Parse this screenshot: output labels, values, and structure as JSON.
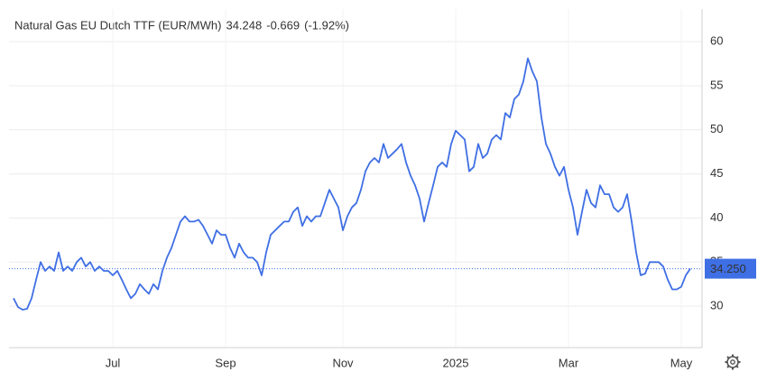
{
  "chart_data": {
    "type": "line",
    "title": "Natural Gas EU Dutch TTF (EUR/MWh)",
    "last_value": 34.248,
    "change": -0.669,
    "change_percent": "(-1.92%)",
    "color": "#3f6fe4",
    "up_color": "#3f6fe4",
    "down_color": "#e05a5a",
    "grid": true,
    "ylim": [
      25.3,
      63.7
    ],
    "yticks": [
      30,
      35,
      40,
      45,
      50,
      55,
      60
    ],
    "price_line": {
      "value": 34.25,
      "label": "34.250"
    },
    "categories": [
      null,
      null,
      null,
      null,
      null,
      null,
      null,
      null,
      null,
      null,
      null,
      null,
      null,
      null,
      null,
      null,
      null,
      null,
      null,
      null,
      null,
      null,
      "Jul",
      null,
      null,
      null,
      null,
      null,
      null,
      null,
      null,
      null,
      null,
      null,
      null,
      null,
      null,
      null,
      null,
      null,
      null,
      null,
      null,
      null,
      null,
      null,
      null,
      "Sep",
      null,
      null,
      null,
      null,
      null,
      null,
      null,
      null,
      null,
      null,
      null,
      null,
      null,
      null,
      null,
      null,
      null,
      null,
      null,
      null,
      null,
      null,
      null,
      null,
      null,
      "Nov",
      null,
      null,
      null,
      null,
      null,
      null,
      null,
      null,
      null,
      null,
      null,
      null,
      null,
      null,
      null,
      null,
      null,
      null,
      null,
      null,
      null,
      null,
      null,
      null,
      "2025",
      null,
      null,
      null,
      null,
      null,
      null,
      null,
      null,
      null,
      null,
      null,
      null,
      null,
      null,
      null,
      null,
      null,
      null,
      null,
      null,
      null,
      null,
      null,
      null,
      "Mar",
      null,
      null,
      null,
      null,
      null,
      null,
      null,
      null,
      null,
      null,
      null,
      null,
      null,
      null,
      null,
      null,
      null,
      null,
      null,
      null,
      null,
      null,
      null,
      null,
      "May",
      null,
      null
    ],
    "values": [
      30.9,
      29.9,
      29.6,
      29.7,
      30.9,
      33.0,
      35.0,
      34.0,
      34.5,
      34.0,
      36.1,
      34.0,
      34.5,
      34.0,
      35.0,
      35.5,
      34.5,
      35.0,
      34.0,
      34.5,
      34.0,
      34.0,
      33.5,
      34.0,
      33.0,
      31.9,
      30.9,
      31.4,
      32.5,
      31.9,
      31.4,
      32.5,
      31.9,
      34.0,
      35.5,
      36.6,
      38.1,
      39.6,
      40.2,
      39.6,
      39.6,
      39.8,
      39.1,
      38.1,
      37.1,
      38.6,
      38.1,
      38.1,
      36.6,
      35.5,
      37.1,
      36.1,
      35.5,
      35.5,
      35.0,
      33.5,
      36.1,
      38.1,
      38.6,
      39.1,
      39.6,
      39.6,
      40.7,
      41.2,
      39.1,
      40.2,
      39.6,
      40.2,
      40.2,
      41.7,
      43.2,
      42.2,
      41.2,
      38.6,
      40.2,
      41.2,
      41.7,
      43.2,
      45.3,
      46.3,
      46.8,
      46.3,
      48.4,
      46.8,
      47.3,
      47.8,
      48.4,
      46.3,
      44.8,
      43.7,
      42.2,
      39.6,
      41.7,
      43.7,
      45.8,
      46.3,
      45.8,
      48.4,
      49.9,
      49.4,
      48.9,
      45.3,
      45.8,
      48.4,
      46.8,
      47.3,
      48.9,
      49.4,
      48.9,
      51.9,
      51.4,
      53.5,
      54.0,
      55.5,
      58.1,
      56.6,
      55.5,
      51.4,
      48.4,
      47.3,
      45.8,
      44.8,
      45.8,
      43.2,
      41.2,
      38.1,
      40.7,
      43.2,
      41.7,
      41.2,
      43.7,
      42.7,
      42.7,
      41.2,
      40.7,
      41.2,
      42.7,
      39.6,
      36.1,
      33.5,
      33.7,
      35.0,
      35.0,
      35.0,
      34.5,
      33.0,
      31.9,
      31.9,
      32.2,
      33.5,
      34.248
    ]
  }
}
